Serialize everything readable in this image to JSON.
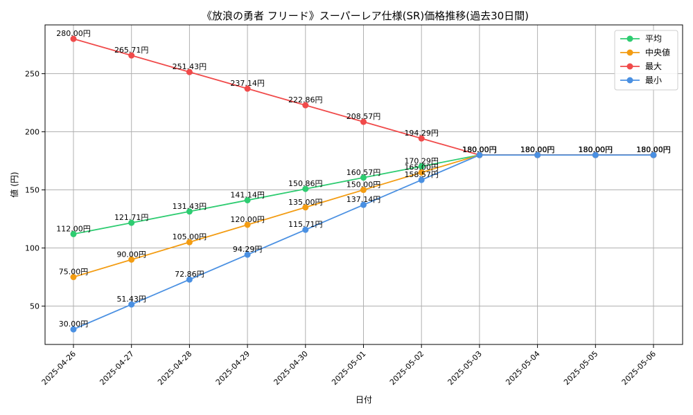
{
  "chart_data": {
    "type": "line",
    "title": "《放浪の勇者 フリード》スーパーレア仕様(SR)価格推移(過去30日間)",
    "xlabel": "日付",
    "ylabel": "値 (円)",
    "x": [
      "2025-04-26",
      "2025-04-27",
      "2025-04-28",
      "2025-04-29",
      "2025-04-30",
      "2025-05-01",
      "2025-05-02",
      "2025-05-03",
      "2025-05-04",
      "2025-05-05",
      "2025-05-06"
    ],
    "ylim": [
      17,
      292
    ],
    "yticks": [
      50,
      100,
      150,
      200,
      250
    ],
    "grid": true,
    "legend_position": "top-right",
    "value_suffix": "円",
    "series": [
      {
        "name": "平均",
        "color": "#2ecc71",
        "values": [
          112.0,
          121.71,
          131.43,
          141.14,
          150.86,
          160.57,
          170.29,
          180.0,
          180.0,
          180.0,
          180.0
        ]
      },
      {
        "name": "中央値",
        "color": "#f39c12",
        "values": [
          75.0,
          90.0,
          105.0,
          120.0,
          135.0,
          150.0,
          165.0,
          180.0,
          180.0,
          180.0,
          180.0
        ]
      },
      {
        "name": "最大",
        "color": "#f04a4a",
        "values": [
          280.0,
          265.71,
          251.43,
          237.14,
          222.86,
          208.57,
          194.29,
          180.0,
          180.0,
          180.0,
          180.0
        ]
      },
      {
        "name": "最小",
        "color": "#4a90e2",
        "values": [
          30.0,
          51.43,
          72.86,
          94.29,
          115.71,
          137.14,
          158.57,
          180.0,
          180.0,
          180.0,
          180.0
        ]
      }
    ]
  }
}
